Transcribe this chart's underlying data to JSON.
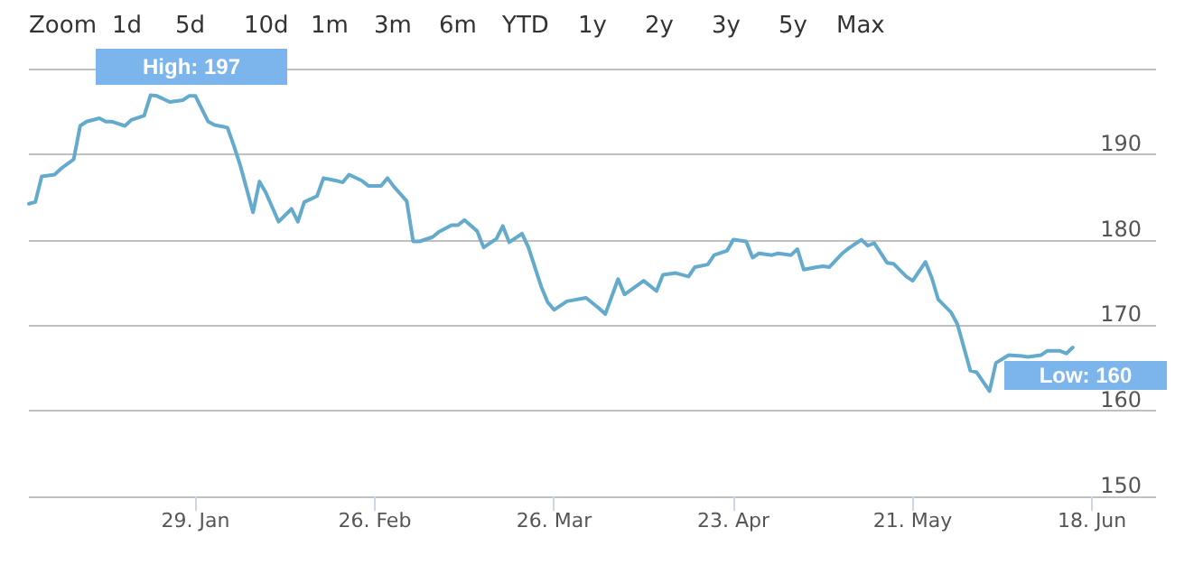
{
  "chart_data": {
    "type": "line",
    "x": [
      "--01-03",
      "--01-04",
      "--01-05",
      "--01-07",
      "--01-08",
      "--01-10",
      "--01-11",
      "--01-12",
      "--01-14",
      "--01-15",
      "--01-16",
      "--01-18",
      "--01-19",
      "--01-21",
      "--01-22",
      "--01-23",
      "--01-25",
      "--01-27",
      "--01-28",
      "--01-29",
      "--01-31",
      "--02-01",
      "--02-03",
      "--02-04",
      "--02-05",
      "--02-07",
      "--02-08",
      "--02-09",
      "--02-11",
      "--02-13",
      "--02-14",
      "--02-15",
      "--02-17",
      "--02-18",
      "--02-20",
      "--02-21",
      "--02-22",
      "--02-24",
      "--02-25",
      "--02-27",
      "--02-28",
      "--03-01",
      "--03-03",
      "--03-04",
      "--03-05",
      "--03-07",
      "--03-08",
      "--03-10",
      "--03-11",
      "--03-12",
      "--03-14",
      "--03-15",
      "--03-17",
      "--03-18",
      "--03-19",
      "--03-21",
      "--03-22",
      "--03-24",
      "--03-25",
      "--03-26",
      "--03-28",
      "--03-31",
      "--04-02",
      "--04-03",
      "--04-05",
      "--04-06",
      "--04-09",
      "--04-11",
      "--04-12",
      "--04-14",
      "--04-16",
      "--04-17",
      "--04-19",
      "--04-20",
      "--04-22",
      "--04-23",
      "--04-25",
      "--04-26",
      "--04-27",
      "--04-29",
      "--04-30",
      "--05-02",
      "--05-03",
      "--05-04",
      "--05-06",
      "--05-07",
      "--05-08",
      "--05-10",
      "--05-11",
      "--05-13",
      "--05-14",
      "--05-15",
      "--05-17",
      "--05-18",
      "--05-20",
      "--05-21",
      "--05-23",
      "--05-24",
      "--05-25",
      "--05-27",
      "--05-28",
      "--05-30",
      "--05-31",
      "--06-02",
      "--06-03",
      "--06-05",
      "--06-07",
      "--06-08",
      "--06-10",
      "--06-11",
      "--06-13",
      "--06-14",
      "--06-15"
    ],
    "series": [
      {
        "color": "#64aacc",
        "values": [
          184.2,
          184.4,
          187.4,
          187.6,
          188.3,
          189.4,
          193.3,
          193.8,
          194.2,
          193.8,
          193.8,
          193.3,
          194.0,
          194.5,
          196.9,
          196.8,
          196.1,
          196.3,
          196.8,
          196.8,
          193.8,
          193.4,
          193.1,
          191.0,
          188.7,
          183.2,
          186.8,
          185.5,
          182.1,
          183.6,
          182.1,
          184.4,
          185.1,
          187.2,
          186.9,
          186.7,
          187.6,
          186.9,
          186.3,
          186.3,
          187.2,
          186.2,
          184.5,
          179.8,
          179.8,
          180.3,
          180.9,
          181.7,
          181.7,
          182.3,
          181.0,
          179.1,
          180.1,
          181.6,
          179.7,
          180.7,
          179.1,
          174.5,
          172.7,
          171.8,
          172.8,
          173.2,
          172.0,
          171.3,
          175.4,
          173.6,
          175.2,
          174.0,
          175.9,
          176.1,
          175.7,
          176.8,
          177.1,
          178.2,
          178.7,
          180.0,
          179.8,
          177.9,
          178.4,
          178.2,
          178.4,
          178.2,
          178.9,
          176.5,
          176.8,
          176.9,
          176.8,
          178.4,
          179.0,
          180.0,
          179.3,
          179.6,
          177.3,
          177.2,
          175.7,
          175.2,
          177.4,
          175.5,
          173.0,
          171.5,
          170.1,
          164.7,
          164.5,
          162.3,
          165.6,
          166.5,
          166.4,
          166.3,
          166.5,
          167.0,
          167.0,
          166.7,
          167.4
        ]
      }
    ],
    "xlim": [
      "--01-03",
      "--06-28"
    ],
    "xticks": [
      {
        "value": "--01-29",
        "label": "29. Jan"
      },
      {
        "value": "--02-26",
        "label": "26. Feb"
      },
      {
        "value": "--03-26",
        "label": "26. Mar"
      },
      {
        "value": "--04-23",
        "label": "23. Apr"
      },
      {
        "value": "--05-21",
        "label": "21. May"
      },
      {
        "value": "--06-18",
        "label": "18. Jun"
      }
    ],
    "ylim": [
      150,
      200
    ],
    "yticks": [
      150,
      160,
      170,
      180,
      190,
      {
        "value": 200,
        "label": null
      }
    ],
    "grid": "y",
    "marker": "none",
    "line_style": "solid",
    "annotations": [
      "Zoom",
      "1d",
      "5d",
      "10d",
      "1m",
      "3m",
      "6m",
      "YTD",
      "1y",
      "2y",
      "3y",
      "5y",
      "Max",
      "High: 197",
      "Low: 160"
    ]
  }
}
